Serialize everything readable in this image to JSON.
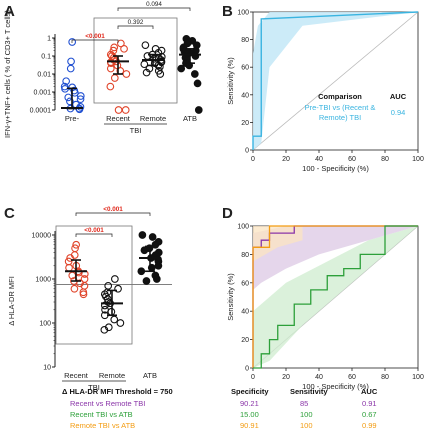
{
  "colors": {
    "blue": "#1f4fd1",
    "red": "#e0442a",
    "black": "#111111",
    "cyan": "#3ab4e0",
    "cyan_fill": "#c6e9f7",
    "purple": "#8a35a8",
    "purple_fill": "#dcc8e4",
    "green": "#2da03a",
    "green_fill": "#cfeccf",
    "orange": "#f39c12",
    "orange_fill": "#fbe4c2",
    "sig_red": "#e0281b"
  },
  "chart_data": [
    {
      "panel": "A",
      "type": "scatter",
      "ylabel": "IFN-γ+TNF+ cells ( % of CD3+ T cells)",
      "scale": "log",
      "ylim": [
        0.0001,
        1
      ],
      "yticks": [
        "0.0001",
        "0.001",
        "0.01",
        "0.1",
        "1"
      ],
      "categories": [
        "Pre-",
        "Recent",
        "Remote",
        "ATB"
      ],
      "group_label": "TBI",
      "group_members": [
        "Recent",
        "Remote"
      ],
      "series": [
        {
          "category": "Pre-",
          "color": "blue",
          "filled": false,
          "median": 0.00013,
          "q1": 0.00012,
          "q3": 0.0016,
          "values": [
            0.6,
            0.05,
            0.02,
            0.004,
            0.002,
            0.0018,
            0.0015,
            0.0012,
            0.0009,
            0.0006,
            0.0005,
            0.0004,
            0.0003,
            0.0002,
            0.00015,
            0.00012,
            0.00012,
            0.00011
          ]
        },
        {
          "category": "Recent",
          "color": "red",
          "filled": false,
          "median": 0.05,
          "q1": 0.01,
          "q3": 0.1,
          "values": [
            0.5,
            0.3,
            0.25,
            0.2,
            0.12,
            0.1,
            0.08,
            0.06,
            0.05,
            0.045,
            0.04,
            0.03,
            0.02,
            0.015,
            0.01,
            0.006,
            0.002,
            0.0001,
            0.0001
          ]
        },
        {
          "category": "Remote",
          "color": "black",
          "filled": false,
          "median": 0.06,
          "q1": 0.03,
          "q3": 0.12,
          "values": [
            0.4,
            0.25,
            0.2,
            0.15,
            0.12,
            0.1,
            0.09,
            0.08,
            0.07,
            0.06,
            0.05,
            0.045,
            0.04,
            0.035,
            0.03,
            0.025,
            0.02,
            0.015,
            0.012,
            0.01
          ]
        },
        {
          "category": "ATB",
          "color": "black",
          "filled": true,
          "median": 0.12,
          "q1": 0.04,
          "q3": 0.25,
          "values": [
            0.9,
            0.7,
            0.5,
            0.4,
            0.3,
            0.25,
            0.2,
            0.18,
            0.15,
            0.12,
            0.1,
            0.08,
            0.06,
            0.04,
            0.03,
            0.02,
            0.01,
            0.003,
            0.0001
          ]
        }
      ],
      "comparisons": [
        {
          "text": "<0.001",
          "from": "Pre-",
          "to": "Recent",
          "significant": true
        },
        {
          "text": "0.392",
          "from": "Recent",
          "to": "Remote",
          "significant": false
        },
        {
          "text": "0.094",
          "from": "Recent",
          "to": "ATB",
          "significant": false
        }
      ]
    },
    {
      "panel": "B",
      "type": "line",
      "xlabel": "100 - Specificity (%)",
      "ylabel": "Sensitivity (%)",
      "xlim": [
        0,
        100
      ],
      "ylim": [
        0,
        100
      ],
      "xticks": [
        0,
        20,
        40,
        60,
        80,
        100
      ],
      "yticks": [
        0,
        20,
        40,
        60,
        80,
        100
      ],
      "legend_header": [
        "Comparison",
        "AUC"
      ],
      "series": [
        {
          "name": "Pre-TBI vs (Recent & Remote) TBI",
          "name_lines": [
            "Pre-TBI vs (Recent &",
            "Remote) TBI"
          ],
          "auc": "0.94",
          "color": "cyan",
          "x": [
            0,
            0,
            5,
            5,
            100
          ],
          "y": [
            0,
            10,
            10,
            95,
            100
          ],
          "ci_upper": [
            [
              0,
              0
            ],
            [
              0,
              70
            ],
            [
              3,
              90
            ],
            [
              10,
              100
            ],
            [
              100,
              100
            ]
          ],
          "ci_lower": [
            [
              0,
              0
            ],
            [
              5,
              5
            ],
            [
              10,
              60
            ],
            [
              30,
              90
            ],
            [
              100,
              100
            ]
          ]
        }
      ]
    },
    {
      "panel": "C",
      "type": "scatter",
      "ylabel": "Δ HLA-DR MFI",
      "scale": "log",
      "ylim": [
        10,
        10000
      ],
      "yticks": [
        "10",
        "100",
        "1000",
        "10000"
      ],
      "threshold": 750,
      "categories": [
        "Recent",
        "Remote",
        "ATB"
      ],
      "group_label": "TBI",
      "group_members": [
        "Recent",
        "Remote"
      ],
      "series": [
        {
          "category": "Recent",
          "color": "red",
          "filled": false,
          "median": 1500,
          "q1": 900,
          "q3": 2700,
          "values": [
            6000,
            5000,
            3500,
            3000,
            2500,
            2000,
            1800,
            1500,
            1400,
            1300,
            1200,
            1000,
            900,
            800,
            700,
            600,
            500,
            450
          ]
        },
        {
          "category": "Remote",
          "color": "black",
          "filled": false,
          "median": 280,
          "q1": 150,
          "q3": 550,
          "values": [
            1000,
            700,
            600,
            500,
            450,
            400,
            350,
            300,
            280,
            250,
            200,
            180,
            150,
            120,
            100,
            80,
            70
          ]
        },
        {
          "category": "ATB",
          "color": "black",
          "filled": true,
          "median": 3000,
          "q1": 1500,
          "q3": 5500,
          "values": [
            10000,
            9000,
            7000,
            6000,
            5000,
            4500,
            4000,
            3500,
            3000,
            2800,
            2500,
            2000,
            1800,
            1500,
            1200,
            1000,
            900
          ]
        }
      ],
      "comparisons": [
        {
          "text": "<0.001",
          "from": "Recent",
          "to": "Remote",
          "significant": true
        },
        {
          "text": "<0.001",
          "from": "Recent",
          "to": "ATB",
          "significant": true
        }
      ]
    },
    {
      "panel": "D",
      "type": "line",
      "xlabel": "100 - Specificity (%)",
      "ylabel": "Sensitivity (%)",
      "xlim": [
        0,
        100
      ],
      "ylim": [
        0,
        100
      ],
      "xticks": [
        0,
        20,
        40,
        60,
        80,
        100
      ],
      "yticks": [
        0,
        20,
        40,
        60,
        80,
        100
      ],
      "series": [
        {
          "name": "Recent vs Remote TBI",
          "color": "purple",
          "x": [
            0,
            0,
            5,
            5,
            10,
            10,
            25,
            25,
            100
          ],
          "y": [
            0,
            85,
            85,
            90,
            90,
            95,
            95,
            100,
            100
          ]
        },
        {
          "name": "Remote TBI vs ATB",
          "color": "orange",
          "x": [
            0,
            0,
            10,
            10,
            100
          ],
          "y": [
            0,
            85,
            85,
            100,
            100
          ]
        },
        {
          "name": "Recent TBI vs ATB",
          "color": "green",
          "x": [
            0,
            5,
            5,
            10,
            10,
            15,
            15,
            25,
            25,
            35,
            35,
            45,
            45,
            55,
            55,
            65,
            65,
            80,
            80,
            100
          ],
          "y": [
            0,
            0,
            10,
            10,
            20,
            20,
            30,
            30,
            45,
            45,
            55,
            55,
            65,
            65,
            70,
            70,
            80,
            80,
            100,
            100
          ]
        }
      ]
    }
  ],
  "panel_labels": {
    "a": "A",
    "b": "B",
    "c": "C",
    "d": "D"
  },
  "table": {
    "title": "Δ HLA-DR MFI Threshold = 750",
    "headers": [
      "Specificity",
      "Sensitivity",
      "AUC"
    ],
    "rows": [
      {
        "label": "Recent vs Remote TBI",
        "color": "purple",
        "values": [
          "90.21",
          "85",
          "0.91"
        ]
      },
      {
        "label": "Recent TBI vs ATB",
        "color": "green",
        "values": [
          "15.00",
          "100",
          "0.67"
        ]
      },
      {
        "label": "Remote TBI vs ATB",
        "color": "orange",
        "values": [
          "90.91",
          "100",
          "0.99"
        ]
      }
    ]
  }
}
